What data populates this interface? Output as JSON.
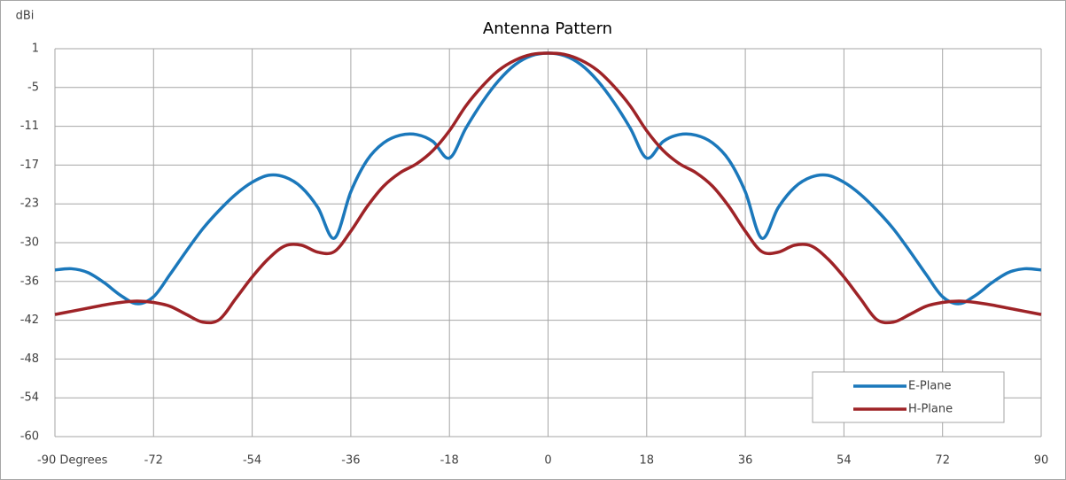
{
  "chart_data": {
    "type": "line",
    "title": "Antenna Pattern",
    "y_label": "dBi",
    "x": [
      -90,
      -87,
      -84,
      -81,
      -78,
      -75,
      -72,
      -69,
      -66,
      -63,
      -60,
      -57,
      -54,
      -51,
      -48,
      -45,
      -42,
      -39,
      -36,
      -33,
      -30,
      -27,
      -24,
      -21,
      -18,
      -15,
      -12,
      -9,
      -6,
      -3,
      0,
      3,
      6,
      9,
      12,
      15,
      18,
      21,
      24,
      27,
      30,
      33,
      36,
      39,
      42,
      45,
      48,
      51,
      54,
      57,
      60,
      63,
      66,
      69,
      72,
      75,
      78,
      81,
      84,
      87,
      90
    ],
    "series": [
      {
        "name": "E-Plane",
        "color": "#1b78bb",
        "values": [
          -33.8,
          -33.6,
          -34.2,
          -35.8,
          -37.8,
          -39.1,
          -38.0,
          -34.5,
          -30.8,
          -27.3,
          -24.4,
          -21.9,
          -20.0,
          -18.9,
          -19.2,
          -20.8,
          -24.0,
          -28.8,
          -21.5,
          -16.5,
          -13.8,
          -12.6,
          -12.5,
          -13.6,
          -16.2,
          -11.5,
          -7.4,
          -4.0,
          -1.5,
          -0.1,
          0.3,
          -0.1,
          -1.5,
          -4.0,
          -7.4,
          -11.5,
          -16.2,
          -13.6,
          -12.5,
          -12.6,
          -13.8,
          -16.5,
          -21.5,
          -28.8,
          -24.0,
          -20.8,
          -19.2,
          -18.9,
          -20.0,
          -21.9,
          -24.4,
          -27.3,
          -30.8,
          -34.5,
          -38.0,
          -39.1,
          -37.8,
          -35.8,
          -34.2,
          -33.6,
          -33.8
        ]
      },
      {
        "name": "H-Plane",
        "color": "#9e2327",
        "values": [
          -40.8,
          -40.3,
          -39.8,
          -39.3,
          -38.9,
          -38.7,
          -38.9,
          -39.5,
          -40.8,
          -42.0,
          -41.6,
          -38.3,
          -34.9,
          -32.0,
          -30.0,
          -29.9,
          -31.0,
          -30.9,
          -27.7,
          -23.8,
          -20.6,
          -18.5,
          -17.1,
          -15.0,
          -11.9,
          -8.0,
          -4.9,
          -2.4,
          -0.8,
          0.1,
          0.3,
          0.1,
          -0.8,
          -2.4,
          -4.9,
          -8.0,
          -11.9,
          -15.0,
          -17.1,
          -18.5,
          -20.6,
          -23.8,
          -27.7,
          -30.9,
          -31.0,
          -29.9,
          -30.0,
          -32.0,
          -34.9,
          -38.3,
          -41.6,
          -42.0,
          -40.8,
          -39.5,
          -38.9,
          -38.7,
          -38.9,
          -39.3,
          -39.8,
          -40.3,
          -40.8
        ]
      }
    ],
    "xlim": [
      -90,
      90
    ],
    "xticks": [
      {
        "value": -90,
        "label": "-90 Degrees"
      },
      -72,
      -54,
      -36,
      -18,
      0,
      18,
      36,
      54,
      72,
      90
    ],
    "ylim": [
      -60,
      1
    ],
    "yticks": [
      1,
      {
        "value": -5.1,
        "label": "-5"
      },
      {
        "value": -11.2,
        "label": "-11"
      },
      {
        "value": -17.3,
        "label": "-17"
      },
      {
        "value": -23.4,
        "label": "-23"
      },
      {
        "value": -29.5,
        "label": "-30"
      },
      {
        "value": -35.6,
        "label": "-36"
      },
      {
        "value": -41.7,
        "label": "-42"
      },
      {
        "value": -47.8,
        "label": "-48"
      },
      {
        "value": -53.9,
        "label": "-54"
      },
      -60
    ],
    "grid": true,
    "legend": "lower right"
  }
}
